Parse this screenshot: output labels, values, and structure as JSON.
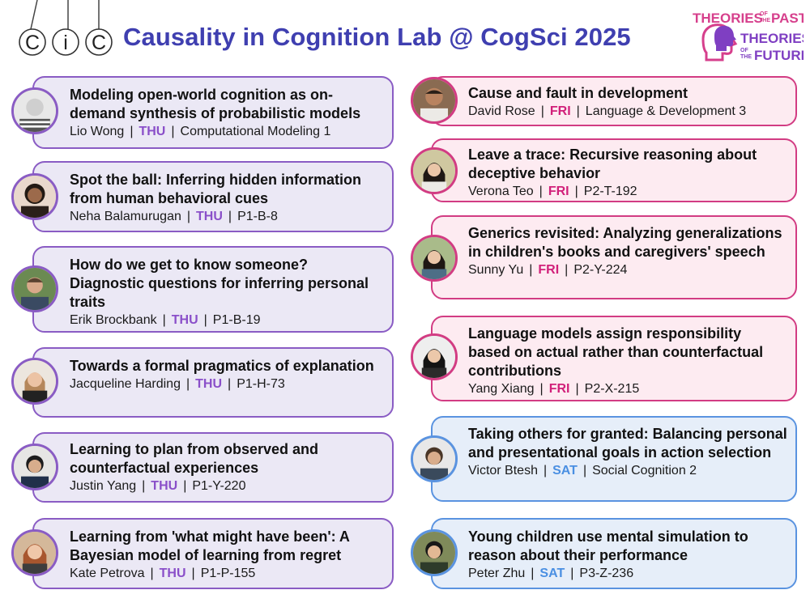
{
  "header": {
    "logo_letters": [
      "C",
      "i",
      "C"
    ],
    "title": "Causality in Cognition Lab  @  CogSci 2025",
    "conf_logo": {
      "line1_a": "THEORIES",
      "line1_b1": "OF",
      "line1_b2": "THE",
      "line1_c": "PAST",
      "line2": "THEORIES",
      "line3_a1": "OF",
      "line3_a2": "THE",
      "line3_b": "FUTURE"
    }
  },
  "colors": {
    "title": "#3f3fb0",
    "thu_accent": "#8a5cc4",
    "fri_accent": "#d23c83",
    "sat_accent": "#5a93e0"
  },
  "left_talks": [
    {
      "title": "Modeling open-world cognition as on-demand synthesis of probabilistic models",
      "author": "Lio Wong",
      "day": "THU",
      "session": "Computational Modeling 1"
    },
    {
      "title": "Spot the ball: Inferring hidden information from human behavioral cues",
      "author": "Neha Balamurugan",
      "day": "THU",
      "session": "P1-B-8"
    },
    {
      "title": "How do we get to know someone? Diagnostic questions for inferring personal traits",
      "author": "Erik Brockbank",
      "day": "THU",
      "session": "P1-B-19"
    },
    {
      "title": "Towards a formal pragmatics of explanation",
      "author": "Jacqueline Harding",
      "day": "THU",
      "session": "P1-H-73"
    },
    {
      "title": "Learning to plan from observed and counterfactual experiences",
      "author": "Justin Yang",
      "day": "THU",
      "session": "P1-Y-220"
    },
    {
      "title": "Learning from 'what might have been': A Bayesian model of learning from regret",
      "author": "Kate Petrova",
      "day": "THU",
      "session": "P1-P-155"
    }
  ],
  "right_talks": [
    {
      "title": "Cause and fault in development",
      "author": "David Rose",
      "day": "FRI",
      "session": "Language & Development 3"
    },
    {
      "title": "Leave a trace: Recursive reasoning about deceptive behavior",
      "author": "Verona Teo",
      "day": "FRI",
      "session": "P2-T-192"
    },
    {
      "title": "Generics revisited: Analyzing generalizations in children's books and caregivers' speech",
      "author": "Sunny Yu",
      "day": "FRI",
      "session": "P2-Y-224"
    },
    {
      "title": "Language models assign responsibility based on actual rather than counterfactual contributions",
      "author": "Yang Xiang",
      "day": "FRI",
      "session": "P2-X-215"
    },
    {
      "title": "Taking others for granted: Balancing personal and presentational goals in action selection",
      "author": "Victor Btesh",
      "day": "SAT",
      "session": "Social Cognition 2"
    },
    {
      "title": "Young children use mental simulation to reason about their performance",
      "author": "Peter Zhu",
      "day": "SAT",
      "session": "P3-Z-236"
    }
  ]
}
